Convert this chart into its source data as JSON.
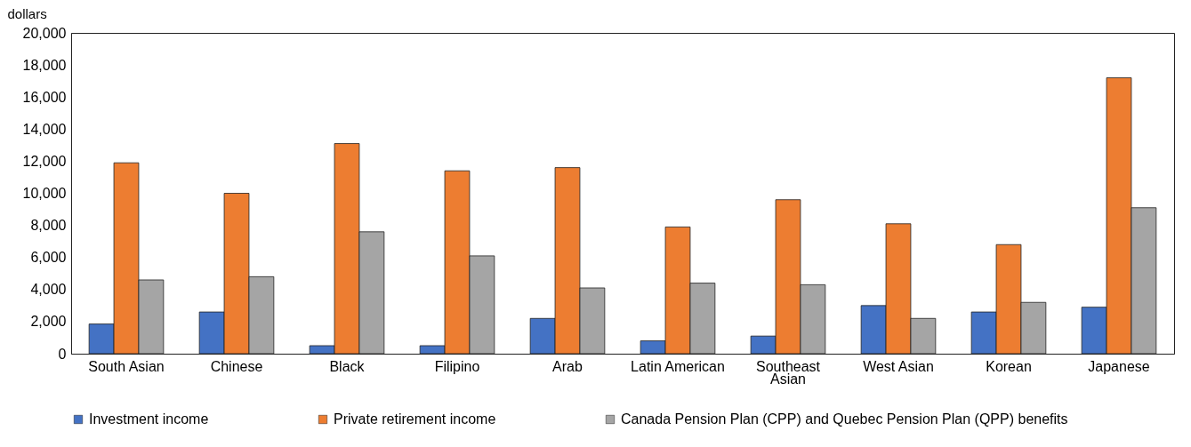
{
  "chart_data": {
    "type": "bar",
    "ylabel": "dollars",
    "categories": [
      "South Asian",
      "Chinese",
      "Black",
      "Filipino",
      "Arab",
      "Latin American",
      "Southeast Asian",
      "West Asian",
      "Korean",
      "Japanese"
    ],
    "series": [
      {
        "name": "Investment income",
        "color": "#4472c4",
        "values": [
          1850,
          2600,
          500,
          500,
          2200,
          800,
          1100,
          3000,
          2600,
          2900
        ]
      },
      {
        "name": "Private retirement income",
        "color": "#ed7d31",
        "values": [
          11900,
          10000,
          13100,
          11400,
          11600,
          7900,
          9600,
          8100,
          6800,
          17200
        ]
      },
      {
        "name": "Canada Pension Plan (CPP) and Quebec Pension Plan (QPP) benefits",
        "color": "#a5a5a5",
        "values": [
          4600,
          4800,
          7600,
          6100,
          4100,
          4400,
          4300,
          2200,
          3200,
          9100
        ]
      }
    ],
    "ylim": [
      0,
      20000
    ],
    "yticks": [
      0,
      {
        "value": 2000,
        "label": "2,000"
      },
      {
        "value": 4000,
        "label": "4,000"
      },
      {
        "value": 6000,
        "label": "6,000"
      },
      {
        "value": 8000,
        "label": "8,000"
      },
      {
        "value": 10000,
        "label": "10,000"
      },
      {
        "value": 12000,
        "label": "12,000"
      },
      {
        "value": 14000,
        "label": "14,000"
      },
      {
        "value": 16000,
        "label": "16,000"
      },
      {
        "value": 18000,
        "label": "18,000"
      },
      {
        "value": 20000,
        "label": "20,000"
      }
    ],
    "grid": false,
    "legend": "bottom"
  }
}
